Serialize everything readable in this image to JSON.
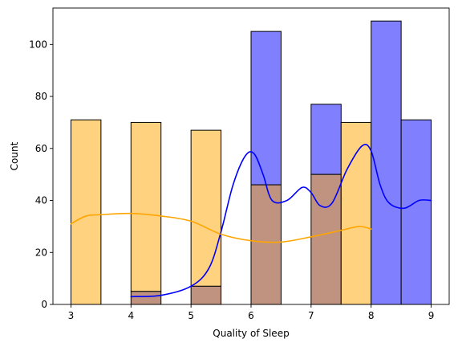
{
  "colors": {
    "series_a_fill": "#8080ff",
    "series_a_line": "#0000ff",
    "series_b_fill": "#ffd280",
    "series_b_line": "#ffa500",
    "overlap_fill": "#bf937f",
    "axis": "#000000",
    "background": "#ffffff"
  },
  "chart_data": {
    "type": "bar",
    "title": "",
    "xlabel": "Quality of Sleep",
    "ylabel": "Count",
    "xlim": [
      2.7,
      9.3
    ],
    "ylim": [
      0,
      114
    ],
    "xticks": [
      3,
      4,
      5,
      6,
      7,
      8,
      9
    ],
    "yticks": [
      0,
      20,
      40,
      60,
      80,
      100
    ],
    "grid": false,
    "legend": "none",
    "bin_width": 0.5,
    "series": [
      {
        "style": "histogram-with-kde",
        "color": "#0000ff",
        "bins": [
          {
            "x0": 4.0,
            "x1": 4.5,
            "count": 5
          },
          {
            "x0": 5.0,
            "x1": 5.5,
            "count": 7
          },
          {
            "x0": 6.0,
            "x1": 6.5,
            "count": 105
          },
          {
            "x0": 7.0,
            "x1": 7.5,
            "count": 77
          },
          {
            "x0": 8.0,
            "x1": 8.5,
            "count": 109
          },
          {
            "x0": 8.5,
            "x1": 9.0,
            "count": 71
          }
        ],
        "kde": {
          "x": [
            4.0,
            4.5,
            5.0,
            5.3,
            5.5,
            5.7,
            5.9,
            6.05,
            6.2,
            6.35,
            6.6,
            6.85,
            7.0,
            7.15,
            7.35,
            7.6,
            7.85,
            8.0,
            8.15,
            8.3,
            8.55,
            8.8,
            9.0
          ],
          "y": [
            3,
            3.5,
            7,
            14,
            28,
            46,
            57,
            58,
            50,
            40,
            40,
            45,
            43,
            38,
            39,
            52,
            61,
            59,
            46,
            39,
            37,
            40,
            40
          ]
        }
      },
      {
        "style": "histogram-with-kde",
        "color": "#ffa500",
        "bins": [
          {
            "x0": 3.0,
            "x1": 3.5,
            "count": 71
          },
          {
            "x0": 4.0,
            "x1": 4.5,
            "count": 70
          },
          {
            "x0": 5.0,
            "x1": 5.5,
            "count": 67
          },
          {
            "x0": 6.0,
            "x1": 6.5,
            "count": 46
          },
          {
            "x0": 7.0,
            "x1": 7.5,
            "count": 50
          },
          {
            "x0": 7.5,
            "x1": 8.0,
            "count": 70
          }
        ],
        "kde": {
          "x": [
            3.0,
            3.25,
            3.5,
            4.0,
            4.5,
            5.0,
            5.5,
            6.0,
            6.5,
            7.0,
            7.5,
            7.8,
            8.0
          ],
          "y": [
            31,
            34,
            34.5,
            35,
            34,
            32,
            27,
            24.5,
            24,
            26,
            28.5,
            30,
            29
          ]
        }
      }
    ]
  }
}
